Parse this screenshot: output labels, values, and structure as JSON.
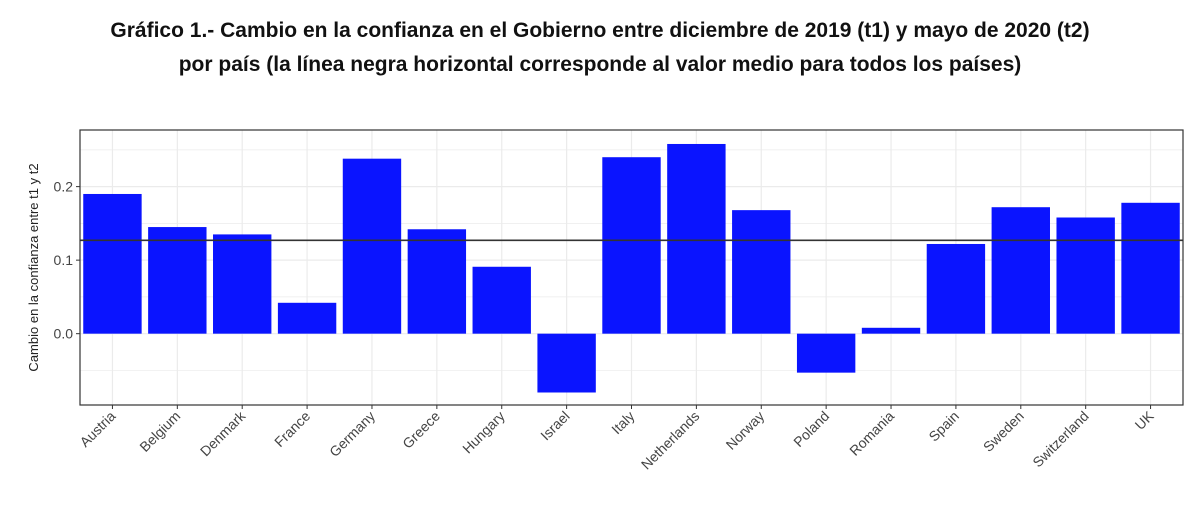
{
  "title_line1": "Gráfico 1.- Cambio en la confianza en el Gobierno entre diciembre de 2019 (t1) y mayo de 2020 (t2)",
  "title_line2": "por país (la línea negra horizontal corresponde al valor medio para todos los países)",
  "colors": {
    "bar": "#0a14ff",
    "reference_line": "#333333",
    "grid": "#ebebeb",
    "panel_border": "#333333"
  },
  "chart_data": {
    "type": "bar",
    "categories": [
      "Austria",
      "Belgium",
      "Denmark",
      "France",
      "Germany",
      "Greece",
      "Hungary",
      "Israel",
      "Italy",
      "Netherlands",
      "Norway",
      "Poland",
      "Romania",
      "Spain",
      "Sweden",
      "Switzerland",
      "UK"
    ],
    "values": [
      0.19,
      0.145,
      0.135,
      0.042,
      0.238,
      0.142,
      0.091,
      -0.08,
      0.24,
      0.258,
      0.168,
      -0.053,
      0.008,
      0.122,
      0.172,
      0.158,
      0.178
    ],
    "mean_line": 0.127,
    "title": "Gráfico 1.- Cambio en la confianza en el Gobierno entre diciembre de 2019 (t1) y mayo de 2020 (t2) por país (la línea negra horizontal corresponde al valor medio para todos los países)",
    "xlabel": "",
    "ylabel": "Cambio en la confianza entre t1 y t2",
    "ylim": [
      -0.097,
      0.277
    ],
    "yticks": [
      0.0,
      0.1,
      0.2
    ],
    "ytick_labels": [
      "0.0",
      "0.1",
      "0.2"
    ],
    "grid": true,
    "legend": "none"
  }
}
